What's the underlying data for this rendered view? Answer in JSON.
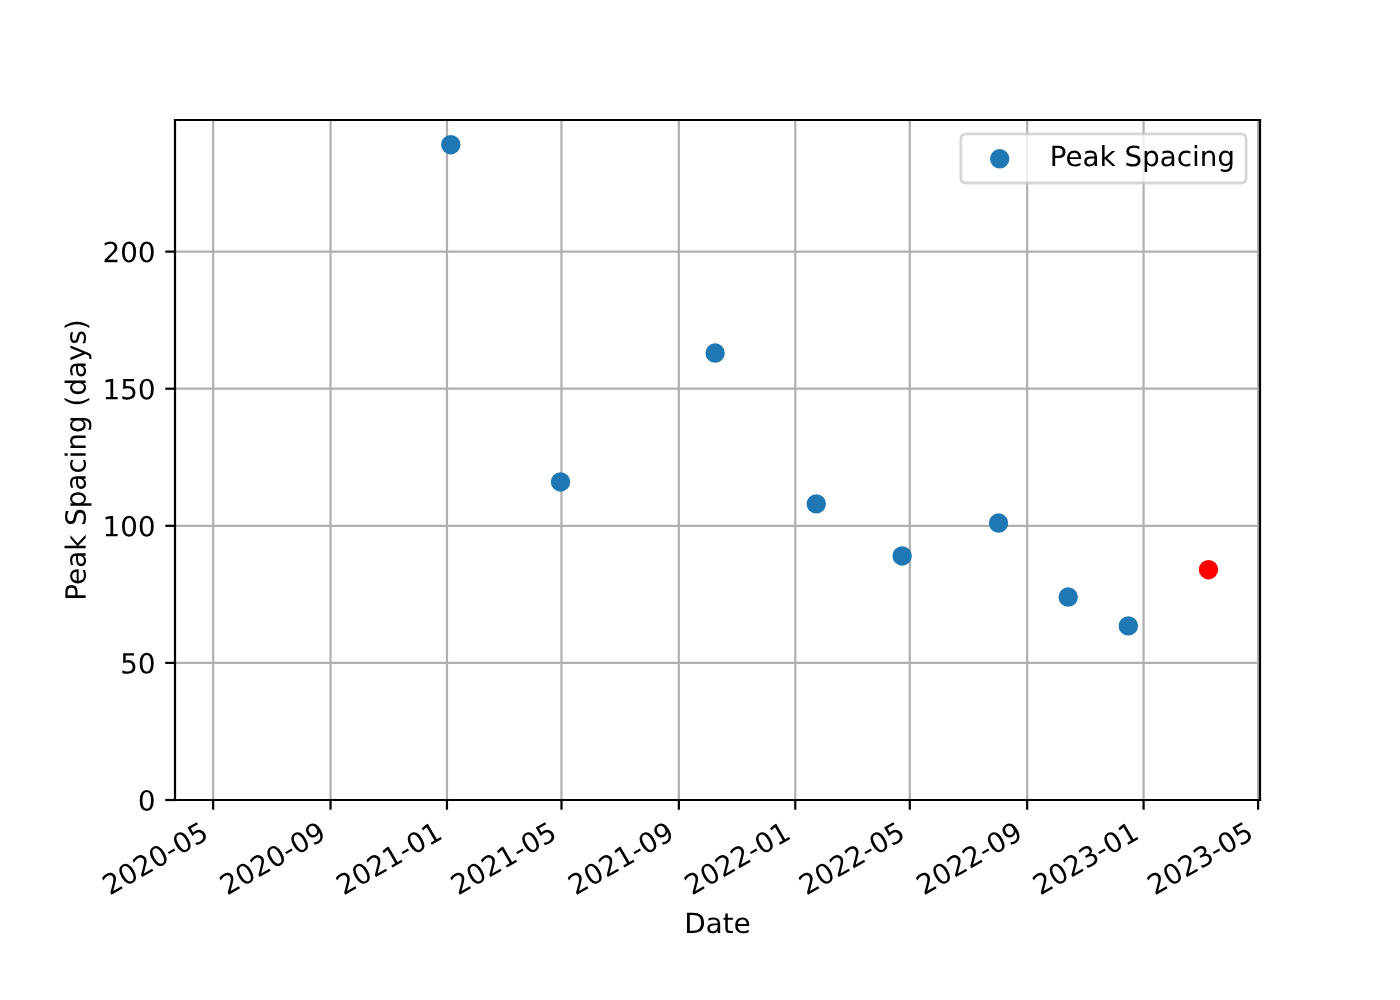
{
  "chart_data": {
    "type": "scatter",
    "xlabel": "Date",
    "ylabel": "Peak Spacing (days)",
    "series": [
      {
        "name": "Peak Spacing",
        "color": "#1f77b4",
        "x": [
          "2021-01-05",
          "2021-04-30",
          "2021-10-09",
          "2022-01-23",
          "2022-04-23",
          "2022-08-02",
          "2022-10-14",
          "2022-12-16"
        ],
        "values": [
          239,
          116,
          163,
          108,
          89,
          101,
          74,
          63.5
        ]
      },
      {
        "color": "#ff0000",
        "x": [
          "2023-03-10"
        ],
        "values": [
          84
        ]
      }
    ],
    "xlim": [
      "2020-03-22",
      "2023-05-03"
    ],
    "ylim": [
      0,
      248
    ],
    "xticks": [
      {
        "value": "2020-05-01",
        "label": "2020-05"
      },
      {
        "value": "2020-09-01",
        "label": "2020-09"
      },
      {
        "value": "2021-01-01",
        "label": "2021-01"
      },
      {
        "value": "2021-05-01",
        "label": "2021-05"
      },
      {
        "value": "2021-09-01",
        "label": "2021-09"
      },
      {
        "value": "2022-01-01",
        "label": "2022-01"
      },
      {
        "value": "2022-05-01",
        "label": "2022-05"
      },
      {
        "value": "2022-09-01",
        "label": "2022-09"
      },
      {
        "value": "2023-01-01",
        "label": "2023-01"
      },
      {
        "value": "2023-05-01",
        "label": "2023-05"
      }
    ],
    "yticks": [
      0,
      50,
      100,
      150,
      200
    ],
    "grid": true,
    "legend": "top right",
    "marker": "circle"
  }
}
